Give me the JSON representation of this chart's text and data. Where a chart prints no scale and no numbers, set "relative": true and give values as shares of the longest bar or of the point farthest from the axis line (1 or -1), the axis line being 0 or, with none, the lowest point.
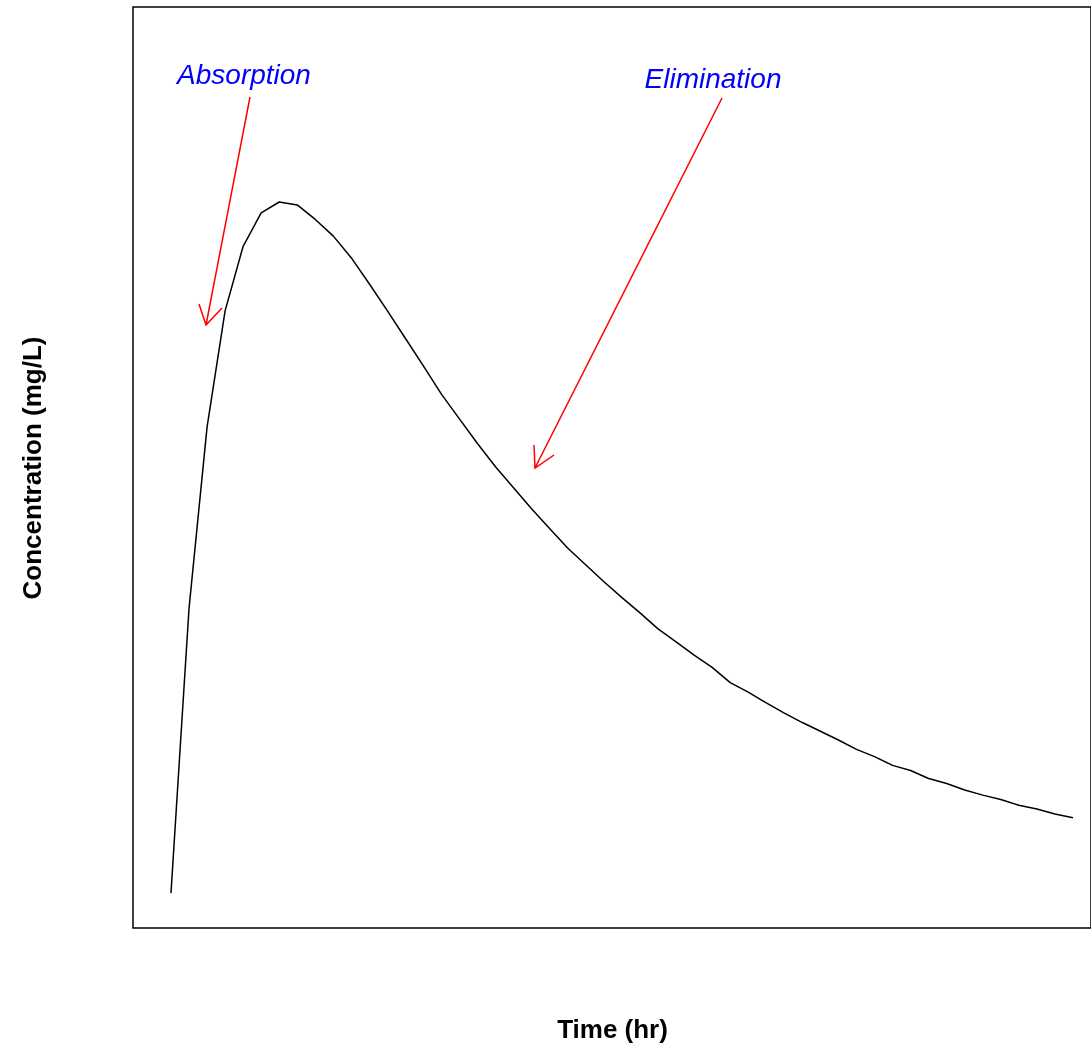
{
  "chart_data": {
    "type": "line",
    "relative": true,
    "xlabel": "Time (hr)",
    "ylabel": "Concentration (mg/L)",
    "annotations": [
      "Absorption",
      "Elimination"
    ],
    "categories": [
      null,
      null,
      null,
      null,
      null,
      null,
      null,
      null,
      null,
      null,
      null,
      null,
      null,
      null,
      null,
      null,
      null,
      null,
      null,
      null,
      null,
      null,
      null,
      null,
      null,
      null,
      null,
      null,
      null,
      null,
      null,
      null,
      null,
      null,
      null,
      null,
      null,
      null,
      null,
      null,
      null,
      null,
      null,
      null,
      null,
      null,
      null,
      null,
      null,
      null,
      null
    ],
    "series": [
      {
        "color": "#000000",
        "values": [
          0.048,
          0.44,
          0.69,
          0.85,
          0.939,
          0.985,
          1,
          0.996,
          0.976,
          0.953,
          0.923,
          0.887,
          0.85,
          0.812,
          0.774,
          0.735,
          0.701,
          0.667,
          0.635,
          0.606,
          0.577,
          0.55,
          0.523,
          0.5,
          0.477,
          0.455,
          0.434,
          0.412,
          0.394,
          0.376,
          0.359,
          0.338,
          0.325,
          0.31,
          0.296,
          0.283,
          0.271,
          0.259,
          0.246,
          0.236,
          0.224,
          0.217,
          0.206,
          0.199,
          0.19,
          0.183,
          0.177,
          0.169,
          0.164,
          0.157,
          0.152
        ]
      }
    ]
  }
}
